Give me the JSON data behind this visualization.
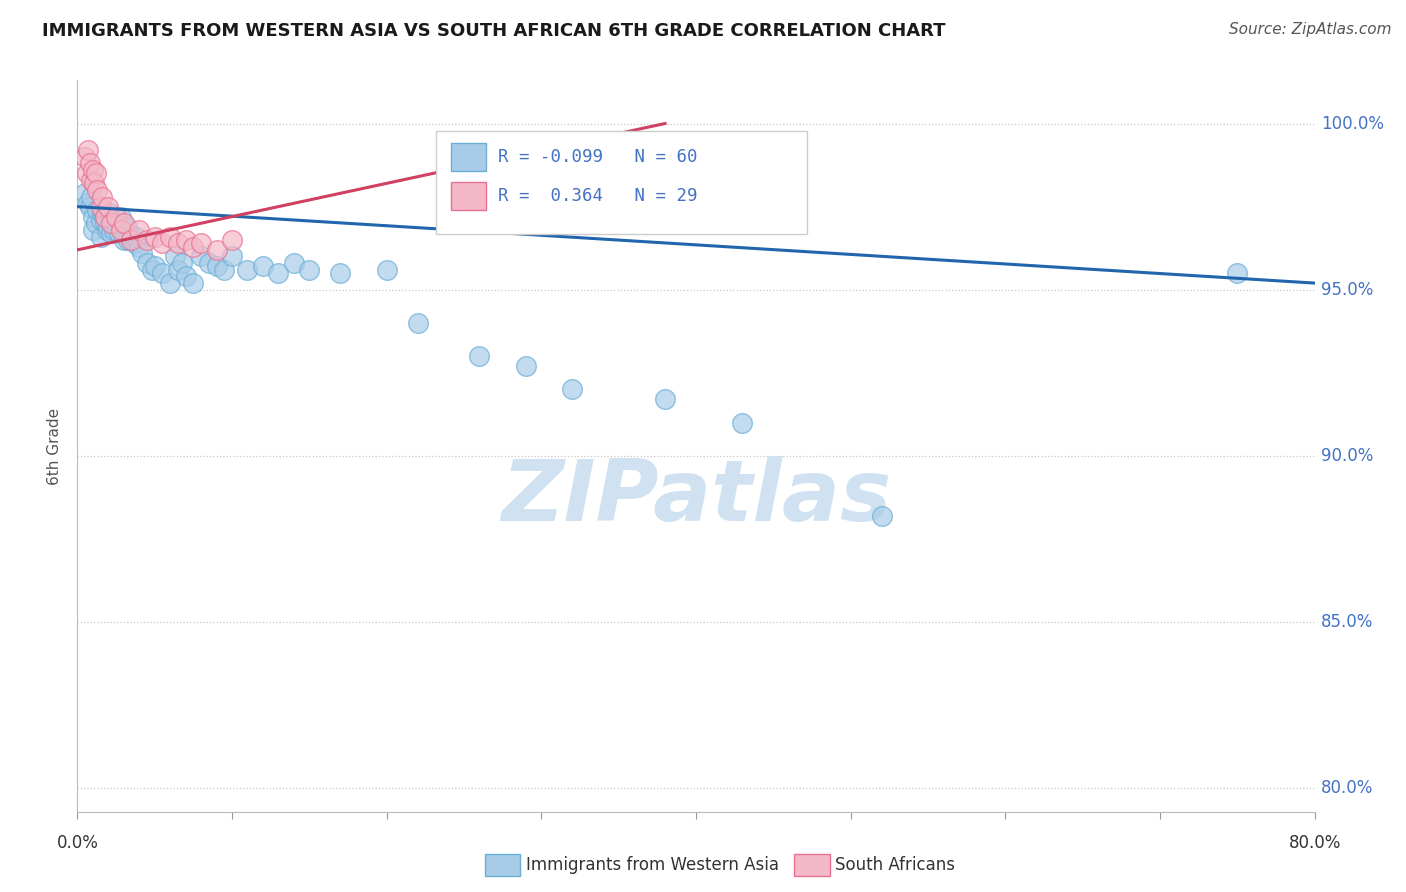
{
  "title": "IMMIGRANTS FROM WESTERN ASIA VS SOUTH AFRICAN 6TH GRADE CORRELATION CHART",
  "source": "Source: ZipAtlas.com",
  "ylabel": "6th Grade",
  "ylabel_right_ticks": [
    "80.0%",
    "85.0%",
    "90.0%",
    "95.0%",
    "100.0%"
  ],
  "ylabel_right_values": [
    0.8,
    0.85,
    0.9,
    0.95,
    1.0
  ],
  "r_blue": -0.099,
  "n_blue": 60,
  "r_pink": 0.364,
  "n_pink": 29,
  "xlim": [
    0.0,
    0.8
  ],
  "ylim": [
    0.793,
    1.013
  ],
  "blue_scatter_x": [
    0.005,
    0.007,
    0.008,
    0.009,
    0.01,
    0.01,
    0.012,
    0.013,
    0.015,
    0.015,
    0.016,
    0.017,
    0.018,
    0.019,
    0.02,
    0.021,
    0.022,
    0.023,
    0.024,
    0.025,
    0.027,
    0.028,
    0.03,
    0.032,
    0.033,
    0.035,
    0.037,
    0.038,
    0.04,
    0.042,
    0.045,
    0.048,
    0.05,
    0.055,
    0.06,
    0.063,
    0.065,
    0.068,
    0.07,
    0.075,
    0.08,
    0.085,
    0.09,
    0.095,
    0.1,
    0.11,
    0.12,
    0.13,
    0.14,
    0.15,
    0.17,
    0.2,
    0.22,
    0.26,
    0.29,
    0.32,
    0.38,
    0.43,
    0.52,
    0.75
  ],
  "blue_scatter_y": [
    0.979,
    0.976,
    0.975,
    0.978,
    0.972,
    0.968,
    0.97,
    0.974,
    0.971,
    0.966,
    0.973,
    0.972,
    0.97,
    0.968,
    0.969,
    0.973,
    0.967,
    0.971,
    0.968,
    0.97,
    0.967,
    0.972,
    0.965,
    0.969,
    0.965,
    0.966,
    0.964,
    0.966,
    0.963,
    0.961,
    0.958,
    0.956,
    0.957,
    0.955,
    0.952,
    0.96,
    0.956,
    0.958,
    0.954,
    0.952,
    0.96,
    0.958,
    0.957,
    0.956,
    0.96,
    0.956,
    0.957,
    0.955,
    0.958,
    0.956,
    0.955,
    0.956,
    0.94,
    0.93,
    0.927,
    0.92,
    0.917,
    0.91,
    0.882,
    0.955
  ],
  "pink_scatter_x": [
    0.005,
    0.006,
    0.007,
    0.008,
    0.009,
    0.01,
    0.011,
    0.012,
    0.013,
    0.015,
    0.016,
    0.018,
    0.02,
    0.022,
    0.025,
    0.028,
    0.03,
    0.035,
    0.04,
    0.045,
    0.05,
    0.055,
    0.06,
    0.065,
    0.07,
    0.075,
    0.08,
    0.09,
    0.1
  ],
  "pink_scatter_y": [
    0.99,
    0.985,
    0.992,
    0.988,
    0.983,
    0.986,
    0.982,
    0.985,
    0.98,
    0.975,
    0.978,
    0.972,
    0.975,
    0.97,
    0.972,
    0.968,
    0.97,
    0.965,
    0.968,
    0.965,
    0.966,
    0.964,
    0.966,
    0.964,
    0.965,
    0.963,
    0.964,
    0.962,
    0.965
  ],
  "blue_line_x": [
    0.0,
    0.8
  ],
  "blue_line_y": [
    0.975,
    0.952
  ],
  "pink_line_x": [
    0.0,
    0.38
  ],
  "pink_line_y": [
    0.962,
    1.0
  ],
  "blue_color": "#a8cce8",
  "blue_edge_color": "#6aaed6",
  "pink_color": "#f4b8c8",
  "pink_edge_color": "#e87090",
  "blue_line_color": "#2166ac",
  "pink_line_color": "#d04060",
  "watermark_text": "ZIPatlas",
  "watermark_color": "#c8ddf0",
  "background_color": "#ffffff",
  "grid_color": "#c8c8c8",
  "right_label_color": "#4472c4",
  "title_color": "#1a1a1a",
  "source_color": "#555555"
}
